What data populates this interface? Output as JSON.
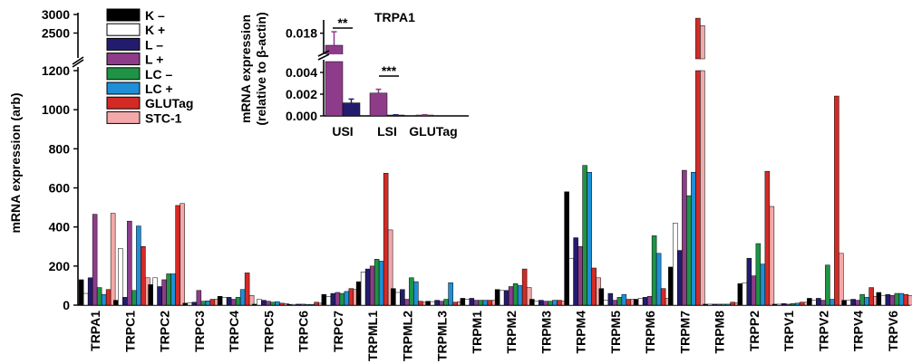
{
  "chart_data": [
    {
      "type": "bar",
      "ylabel": "mRNA expression (arb)",
      "ylim_lower": [
        0,
        1200
      ],
      "ylim_upper": [
        2000,
        3000
      ],
      "y_ticks_lower": [
        "0",
        "200",
        "400",
        "600",
        "800",
        "1000",
        "1200"
      ],
      "y_ticks_upper": [
        "2500",
        "3000"
      ],
      "categories": [
        "TRPA1",
        "TRPC1",
        "TRPC2",
        "TRPC3",
        "TRPC4",
        "TRPC5",
        "TRPC6",
        "TRPC7",
        "TRPML1",
        "TRPML2",
        "TRPML3",
        "TRPM1",
        "TRPM2",
        "TRPM3",
        "TRPM4",
        "TRPM5",
        "TRPM6",
        "TRPM7",
        "TRPM8",
        "TRPP2",
        "TRPV1",
        "TRPV2",
        "TRPV4",
        "TRPV6"
      ],
      "legend_position": "top-left",
      "series": [
        {
          "name": "K –",
          "color": "#000000",
          "values": [
            130,
            25,
            105,
            10,
            45,
            5,
            4,
            55,
            120,
            85,
            20,
            35,
            80,
            30,
            580,
            85,
            30,
            195,
            5,
            110,
            5,
            35,
            25,
            65
          ]
        },
        {
          "name": "K +",
          "color": "#ffffff",
          "values": [
            60,
            290,
            140,
            12,
            40,
            30,
            4,
            45,
            170,
            65,
            18,
            30,
            75,
            20,
            240,
            25,
            35,
            420,
            5,
            115,
            5,
            25,
            25,
            50
          ]
        },
        {
          "name": "L –",
          "color": "#231c6e",
          "values": [
            140,
            40,
            95,
            15,
            40,
            25,
            5,
            60,
            185,
            80,
            25,
            35,
            75,
            25,
            345,
            60,
            40,
            280,
            5,
            240,
            8,
            35,
            30,
            55
          ]
        },
        {
          "name": "L +",
          "color": "#8e3c8a",
          "values": [
            465,
            430,
            130,
            75,
            30,
            20,
            5,
            65,
            200,
            30,
            20,
            25,
            95,
            20,
            300,
            25,
            45,
            690,
            5,
            150,
            5,
            25,
            25,
            50
          ]
        },
        {
          "name": "LC –",
          "color": "#1f9345",
          "values": [
            90,
            75,
            160,
            20,
            40,
            15,
            4,
            60,
            235,
            140,
            30,
            25,
            110,
            20,
            715,
            40,
            355,
            560,
            5,
            315,
            8,
            205,
            55,
            60
          ]
        },
        {
          "name": "LC +",
          "color": "#1f8fd7",
          "values": [
            55,
            405,
            160,
            22,
            80,
            18,
            4,
            70,
            225,
            120,
            115,
            25,
            100,
            25,
            680,
            55,
            265,
            680,
            5,
            210,
            10,
            30,
            40,
            60
          ]
        },
        {
          "name": "GLUTag",
          "color": "#d42a25",
          "values": [
            80,
            300,
            510,
            30,
            165,
            10,
            15,
            85,
            675,
            20,
            15,
            25,
            185,
            25,
            190,
            30,
            85,
            2900,
            15,
            685,
            15,
            1070,
            90,
            55
          ]
        },
        {
          "name": "STC-1",
          "color": "#f3a9a9",
          "values": [
            470,
            140,
            520,
            30,
            50,
            8,
            10,
            80,
            385,
            15,
            18,
            25,
            90,
            20,
            140,
            30,
            35,
            2700,
            12,
            505,
            15,
            265,
            45,
            50
          ]
        }
      ]
    },
    {
      "type": "bar",
      "title": "TRPA1",
      "ylabel_line1": "mRNA expression",
      "ylabel_line2": "(relative to β-actin)",
      "categories": [
        "USI",
        "LSI",
        "GLUTag"
      ],
      "ylim_lower": [
        0,
        0.005
      ],
      "ylim_upper": [
        0.014,
        0.02
      ],
      "y_ticks": [
        "0.000",
        "0.002",
        "0.004",
        "0.018"
      ],
      "series": [
        {
          "name": "L +",
          "color": "#8e3c8a",
          "values": [
            0.0155,
            0.0021,
            8e-05
          ],
          "errors": [
            0.0028,
            0.00035,
            3e-05
          ]
        },
        {
          "name": "L –",
          "color": "#231c6e",
          "values": [
            0.0012,
            8e-05,
            null
          ],
          "errors": [
            0.00035,
            2e-05,
            null
          ]
        }
      ],
      "annotations": [
        "**",
        "***"
      ]
    }
  ]
}
